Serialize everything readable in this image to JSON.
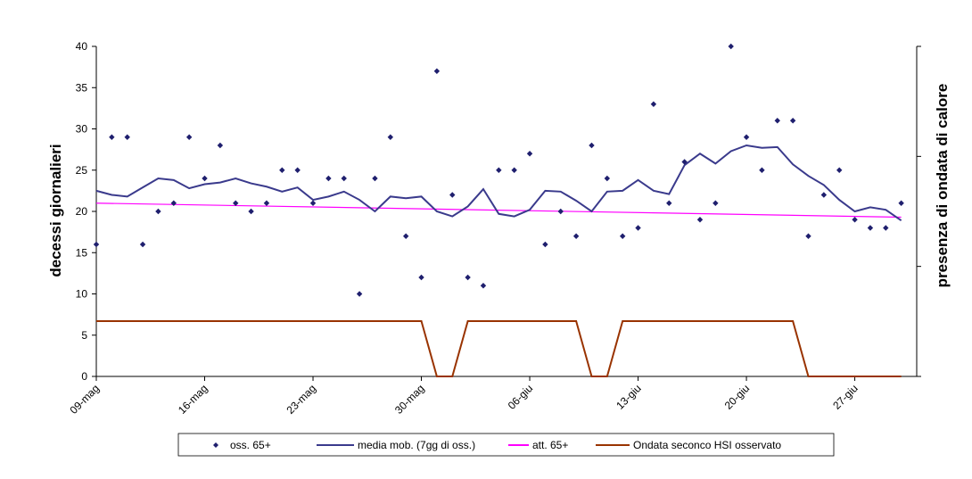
{
  "chart_data": {
    "type": "line",
    "ylabel": "decessi giornalieri",
    "y2label": "presenza di ondata di calore",
    "ylim": [
      0,
      40
    ],
    "yticks": [
      0,
      5,
      10,
      15,
      20,
      25,
      30,
      35,
      40
    ],
    "x_tick_labels": [
      "09-mag",
      "16-mag",
      "23-mag",
      "30-mag",
      "06-giu",
      "13-giu",
      "20-giu",
      "27-giu"
    ],
    "x_tick_days": [
      0,
      7,
      14,
      21,
      28,
      35,
      42,
      49
    ],
    "x_days_range": [
      0,
      53
    ],
    "series": [
      {
        "name": "oss. 65+",
        "kind": "scatter",
        "color": "#1f1f6e",
        "values": [
          16,
          29,
          29,
          16,
          20,
          21,
          29,
          24,
          28,
          21,
          20,
          21,
          25,
          25,
          21,
          24,
          24,
          10,
          24,
          29,
          17,
          12,
          37,
          22,
          12,
          11,
          25,
          25,
          27,
          16,
          20,
          17,
          28,
          24,
          17,
          18,
          33,
          21,
          26,
          19,
          21,
          40,
          29,
          25,
          31,
          31,
          17,
          22,
          25,
          19,
          18,
          18,
          21
        ]
      },
      {
        "name": "media mob. (7gg di oss.)",
        "kind": "line",
        "color": "#3a3a8c",
        "values": [
          22.5,
          22.0,
          21.8,
          22.9,
          24.0,
          23.8,
          22.8,
          23.3,
          23.5,
          24.0,
          23.4,
          23.0,
          22.4,
          22.9,
          21.4,
          21.8,
          22.4,
          21.4,
          20.0,
          21.8,
          21.6,
          21.8,
          20.0,
          19.4,
          20.6,
          22.7,
          19.7,
          19.4,
          20.2,
          22.5,
          22.4,
          21.3,
          20.0,
          22.4,
          22.5,
          23.8,
          22.5,
          22.1,
          25.6,
          27.0,
          25.8,
          27.3,
          28.0,
          27.7,
          27.8,
          25.7,
          24.3,
          23.2,
          21.4,
          20.0,
          20.5,
          20.2,
          18.9
        ]
      },
      {
        "name": "att. 65+",
        "kind": "line",
        "color": "#ff00ff",
        "start": 21.0,
        "end": 19.3
      },
      {
        "name": "Ondata seconco HSI osservato",
        "kind": "line",
        "color": "#993300",
        "values": [
          6.7,
          6.7,
          6.7,
          6.7,
          6.7,
          6.7,
          6.7,
          6.7,
          6.7,
          6.7,
          6.7,
          6.7,
          6.7,
          6.7,
          6.7,
          6.7,
          6.7,
          6.7,
          6.7,
          6.7,
          6.7,
          6.7,
          0,
          0,
          6.7,
          6.7,
          6.7,
          6.7,
          6.7,
          6.7,
          6.7,
          6.7,
          0,
          0,
          6.7,
          6.7,
          6.7,
          6.7,
          6.7,
          6.7,
          6.7,
          6.7,
          6.7,
          6.7,
          6.7,
          6.7,
          0,
          0,
          0,
          0,
          0,
          0,
          0
        ]
      }
    ],
    "legend": {
      "position": "bottom",
      "labels": [
        "oss. 65+",
        "media mob. (7gg di oss.)",
        "att. 65+",
        "Ondata seconco HSI osservato"
      ]
    }
  }
}
